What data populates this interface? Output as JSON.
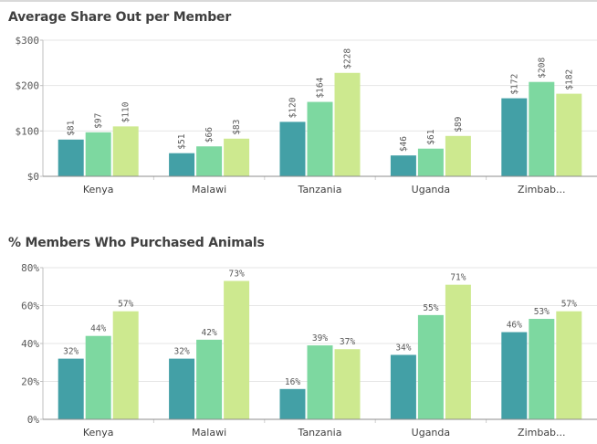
{
  "chart_data": [
    {
      "type": "bar",
      "title": "Average Share Out per Member",
      "categories": [
        "Kenya",
        "Malawi",
        "Tanzania",
        "Uganda",
        "Zimbab..."
      ],
      "series": [
        {
          "values": [
            81,
            51,
            120,
            46,
            172
          ]
        },
        {
          "values": [
            97,
            66,
            164,
            61,
            208
          ]
        },
        {
          "values": [
            110,
            83,
            228,
            89,
            182
          ]
        }
      ],
      "data_labels": [
        [
          "$81",
          "$51",
          "$120",
          "$46",
          "$172"
        ],
        [
          "$97",
          "$66",
          "$164",
          "$61",
          "$208"
        ],
        [
          "$110",
          "$83",
          "$228",
          "$89",
          "$182"
        ]
      ],
      "yticks": [
        0,
        100,
        200,
        300
      ],
      "ytick_labels": [
        "$0",
        "$100",
        "$200",
        "$300"
      ],
      "ylim": [
        0,
        300
      ],
      "label_orientation": "vertical",
      "grid": true,
      "colors": [
        "#43a0a6",
        "#7dd8a0",
        "#cde98f"
      ]
    },
    {
      "type": "bar",
      "title": "% Members Who Purchased Animals",
      "categories": [
        "Kenya",
        "Malawi",
        "Tanzania",
        "Uganda",
        "Zimbab..."
      ],
      "series": [
        {
          "values": [
            32,
            32,
            16,
            34,
            46
          ]
        },
        {
          "values": [
            44,
            42,
            39,
            55,
            53
          ]
        },
        {
          "values": [
            57,
            73,
            37,
            71,
            57
          ]
        }
      ],
      "data_labels": [
        [
          "32%",
          "32%",
          "16%",
          "34%",
          "46%"
        ],
        [
          "44%",
          "42%",
          "39%",
          "55%",
          "53%"
        ],
        [
          "57%",
          "73%",
          "37%",
          "71%",
          "57%"
        ]
      ],
      "yticks": [
        0,
        20,
        40,
        60,
        80
      ],
      "ytick_labels": [
        "0%",
        "20%",
        "40%",
        "60%",
        "80%"
      ],
      "ylim": [
        0,
        80
      ],
      "label_orientation": "horizontal",
      "grid": true,
      "colors": [
        "#43a0a6",
        "#7dd8a0",
        "#cde98f"
      ]
    }
  ]
}
